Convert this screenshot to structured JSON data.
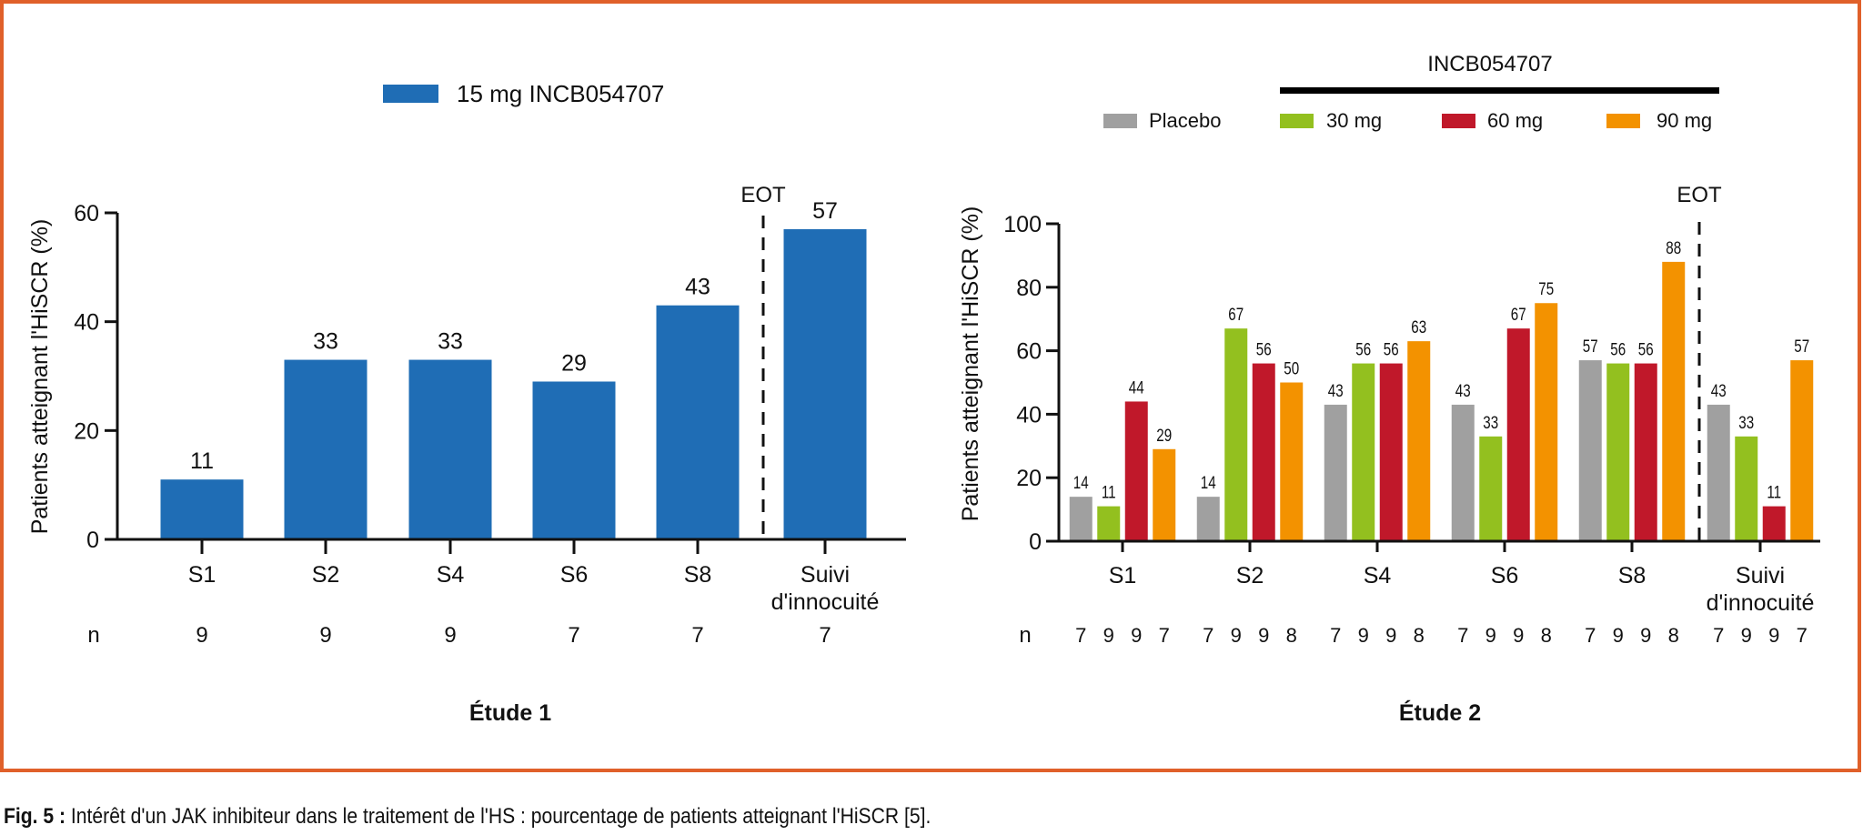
{
  "caption": {
    "label": "Fig. 5 :",
    "text": " Intérêt d'un JAK inhibiteur dans le traitement de l'HS : pourcentage de patients atteignant l'HiSCR [5]."
  },
  "colors": {
    "frame": "#E0602A",
    "study1": "#1F6DB5",
    "placebo": "#A0A0A0",
    "mg30": "#93C01F",
    "mg60": "#C0182A",
    "mg90": "#F39200"
  },
  "chart_data": [
    {
      "type": "bar",
      "title": "Étude 1",
      "legend": [
        {
          "name": "15 mg INCB054707",
          "color": "#1F6DB5"
        }
      ],
      "ylabel": "Patients atteignant l'HiSCR (%)",
      "xlabel": "",
      "ylim": [
        0,
        60
      ],
      "yticks": [
        0,
        20,
        40,
        60
      ],
      "categories": [
        "S1",
        "S2",
        "S4",
        "S6",
        "S8",
        "Suivi d'innocuité"
      ],
      "category_lines": [
        [
          "S1"
        ],
        [
          "S2"
        ],
        [
          "S4"
        ],
        [
          "S6"
        ],
        [
          "S8"
        ],
        [
          "Suivi",
          "d'innocuité"
        ]
      ],
      "series": [
        {
          "name": "15 mg INCB054707",
          "values": [
            11,
            33,
            33,
            29,
            43,
            57
          ]
        }
      ],
      "value_labels": [
        "11",
        "33",
        "33",
        "29",
        "43",
        "57"
      ],
      "n_label": "n",
      "n": [
        [
          9
        ],
        [
          9
        ],
        [
          9
        ],
        [
          7
        ],
        [
          7
        ],
        [
          7
        ]
      ],
      "annotation": {
        "text": "EOT",
        "between": [
          "S8",
          "Suivi d'innocuité"
        ],
        "style": "dashed-vertical-line"
      },
      "grid": false
    },
    {
      "type": "bar",
      "title": "Étude 2",
      "legend_group_title": "INCB054707",
      "legend": [
        {
          "name": "Placebo",
          "color": "#A0A0A0"
        },
        {
          "name": "30 mg",
          "color": "#93C01F"
        },
        {
          "name": "60 mg",
          "color": "#C0182A"
        },
        {
          "name": "90 mg",
          "color": "#F39200"
        }
      ],
      "ylabel": "Patients atteignant l'HiSCR (%)",
      "xlabel": "",
      "ylim": [
        0,
        100
      ],
      "yticks": [
        0,
        20,
        40,
        60,
        80,
        100
      ],
      "categories": [
        "S1",
        "S2",
        "S4",
        "S6",
        "S8",
        "Suivi d'innocuité"
      ],
      "category_lines": [
        [
          "S1"
        ],
        [
          "S2"
        ],
        [
          "S4"
        ],
        [
          "S6"
        ],
        [
          "S8"
        ],
        [
          "Suivi",
          "d'innocuité"
        ]
      ],
      "series": [
        {
          "name": "Placebo",
          "values": [
            14,
            14,
            43,
            43,
            57,
            43
          ]
        },
        {
          "name": "30 mg",
          "values": [
            11,
            67,
            56,
            33,
            56,
            33
          ]
        },
        {
          "name": "60 mg",
          "values": [
            44,
            56,
            56,
            67,
            56,
            11
          ]
        },
        {
          "name": "90 mg",
          "values": [
            29,
            50,
            63,
            75,
            88,
            57
          ]
        }
      ],
      "n_label": "n",
      "n": [
        [
          7,
          9,
          9,
          7
        ],
        [
          7,
          9,
          9,
          8
        ],
        [
          7,
          9,
          9,
          8
        ],
        [
          7,
          9,
          9,
          8
        ],
        [
          7,
          9,
          9,
          8
        ],
        [
          7,
          9,
          9,
          7
        ]
      ],
      "annotation": {
        "text": "EOT",
        "between": [
          "S8",
          "Suivi d'innocuité"
        ],
        "style": "dashed-vertical-line"
      },
      "grid": false
    }
  ]
}
